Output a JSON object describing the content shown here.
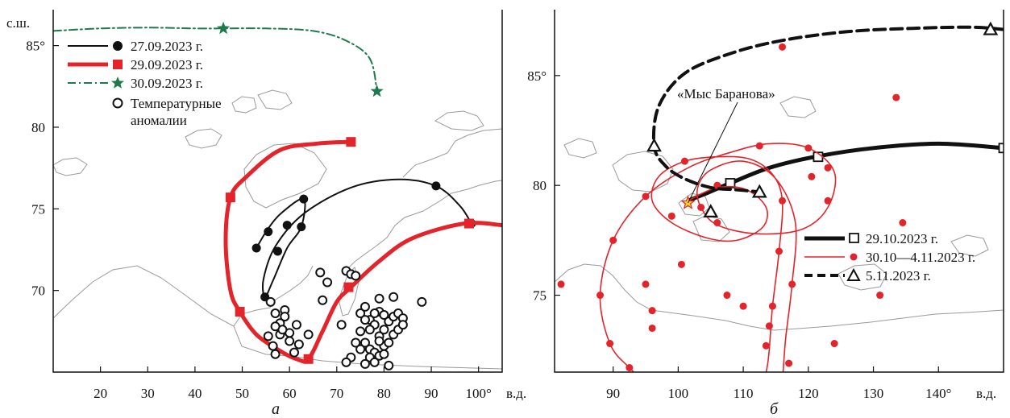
{
  "colors": {
    "black": "#111111",
    "red": "#e3242b",
    "green": "#1e7a4a",
    "star_fill": "#f0d020",
    "coast": "#9a9a9a"
  },
  "chart_data": [
    {
      "type": "line",
      "panel_label": "а",
      "xlabel": "в.д.",
      "ylabel": "с.ш.",
      "xlim": [
        10,
        105
      ],
      "ylim": [
        65,
        87.2
      ],
      "x_ticks": [
        20,
        30,
        40,
        50,
        60,
        70,
        80,
        90,
        100
      ],
      "x_tick_labels": [
        "20",
        "30",
        "40",
        "50",
        "60",
        "70",
        "80",
        "90",
        "100°"
      ],
      "y_ticks": [
        70,
        75,
        80,
        85
      ],
      "y_tick_labels": [
        "70",
        "75",
        "80",
        "85°"
      ],
      "legend_position": "top-left",
      "series": [
        {
          "name": "27.09.2023 г.",
          "color": "black",
          "marker": "circle",
          "line_width": 2,
          "path": [
            [
              98.5,
              74.1
            ],
            [
              96,
              75.2
            ],
            [
              91,
              76.4
            ],
            [
              83,
              76.8
            ],
            [
              73,
              76.3
            ],
            [
              63,
              74.7
            ],
            [
              57,
              72.7
            ],
            [
              54.5,
              70.7
            ],
            [
              54.8,
              69.6
            ],
            [
              56.5,
              70.6
            ],
            [
              59.5,
              72.6
            ],
            [
              62.5,
              73.9
            ],
            [
              63,
              75.6
            ],
            [
              58.5,
              74.8
            ],
            [
              55.5,
              73.8
            ],
            [
              53,
              72.6
            ]
          ],
          "points": [
            [
              98.5,
              74.1
            ],
            [
              91,
              76.4
            ],
            [
              63,
              75.6
            ],
            [
              59.5,
              74
            ],
            [
              57.5,
              72.4
            ],
            [
              62.5,
              73.9
            ],
            [
              53,
              72.6
            ],
            [
              55.5,
              73.6
            ],
            [
              54.8,
              69.6
            ]
          ]
        },
        {
          "name": "29.09.2023 г.",
          "color": "red",
          "marker": "square",
          "line_width": 5,
          "path": [
            [
              73,
              79.1
            ],
            [
              66,
              79
            ],
            [
              58,
              78.6
            ],
            [
              51,
              77
            ],
            [
              47.5,
              75.7
            ],
            [
              46.5,
              73
            ],
            [
              47.5,
              70
            ],
            [
              49.5,
              68.7
            ],
            [
              53,
              67.3
            ],
            [
              58,
              66.3
            ],
            [
              61.5,
              65.8
            ],
            [
              64,
              65.8
            ],
            [
              67,
              67.5
            ],
            [
              70,
              69.3
            ],
            [
              73,
              70.2
            ],
            [
              79,
              71.8
            ],
            [
              86,
              73.2
            ],
            [
              97,
              74.1
            ],
            [
              105,
              74
            ]
          ],
          "points": [
            [
              73,
              79.1
            ],
            [
              47.5,
              75.7
            ],
            [
              49.5,
              68.7
            ],
            [
              64,
              65.8
            ],
            [
              72.5,
              70.2
            ],
            [
              98,
              74.1
            ]
          ]
        },
        {
          "name": "30.09.2023 г.",
          "color": "green",
          "marker": "star",
          "line_width": 2,
          "dash": "10 4 2 4",
          "path": [
            [
              10,
              85.9
            ],
            [
              20,
              86.05
            ],
            [
              30,
              86.1
            ],
            [
              40,
              86.05
            ],
            [
              46,
              86.05
            ],
            [
              55,
              86.05
            ],
            [
              65,
              85.9
            ],
            [
              72,
              85.3
            ],
            [
              77,
              84.2
            ],
            [
              78.5,
              82.2
            ]
          ],
          "points": [
            [
              46,
              86.05
            ],
            [
              78.5,
              82.2
            ]
          ]
        },
        {
          "name": "Температурные аномалии",
          "color": "black",
          "marker": "open-circle",
          "points": [
            [
              56,
              69.3
            ],
            [
              57,
              68.6
            ],
            [
              58,
              68
            ],
            [
              59,
              68.8
            ],
            [
              60,
              67.4
            ],
            [
              58,
              67.3
            ],
            [
              60,
              66.9
            ],
            [
              61,
              66.2
            ],
            [
              56.5,
              66.6
            ],
            [
              57,
              66.1
            ],
            [
              58.5,
              67.6
            ],
            [
              59,
              68.4
            ],
            [
              61.5,
              67.9
            ],
            [
              62,
              66.7
            ],
            [
              64,
              67.3
            ],
            [
              55.5,
              67.2
            ],
            [
              57,
              67.8
            ],
            [
              66.5,
              71.1
            ],
            [
              68,
              70.5
            ],
            [
              67,
              69.4
            ],
            [
              72,
              71.2
            ],
            [
              73,
              71
            ],
            [
              74,
              70.9
            ],
            [
              75,
              68.6
            ],
            [
              76,
              69
            ],
            [
              77,
              68.2
            ],
            [
              76,
              66.8
            ],
            [
              77,
              66.4
            ],
            [
              78,
              66.2
            ],
            [
              77,
              65.9
            ],
            [
              78,
              65.6
            ],
            [
              79,
              66
            ],
            [
              80,
              66.6
            ],
            [
              79,
              67.2
            ],
            [
              80,
              67.6
            ],
            [
              81,
              68.1
            ],
            [
              82,
              68.4
            ],
            [
              83,
              68.6
            ],
            [
              84,
              68.3
            ],
            [
              82,
              67.3
            ],
            [
              81,
              66.8
            ],
            [
              83,
              67.6
            ],
            [
              84,
              67.9
            ],
            [
              79,
              68.7
            ],
            [
              80,
              68.5
            ],
            [
              78,
              67.9
            ],
            [
              79,
              69.5
            ],
            [
              82,
              69.6
            ],
            [
              88,
              69.3
            ],
            [
              75,
              67.5
            ],
            [
              75,
              66.4
            ],
            [
              76,
              65.5
            ],
            [
              73,
              65.9
            ],
            [
              72,
              65.6
            ],
            [
              74,
              66.8
            ],
            [
              71,
              67.9
            ],
            [
              76,
              68.2
            ],
            [
              77,
              67.6
            ],
            [
              78,
              68.6
            ],
            [
              79,
              66.9
            ],
            [
              80,
              66.1
            ],
            [
              81,
              65.4
            ]
          ]
        }
      ]
    },
    {
      "type": "line",
      "panel_label": "б",
      "xlabel": "в.д.",
      "xlim": [
        81,
        150
      ],
      "ylim": [
        71.5,
        88
      ],
      "x_ticks": [
        90,
        100,
        110,
        120,
        130,
        140
      ],
      "x_tick_labels": [
        "90",
        "100",
        "110",
        "120",
        "130",
        "140°"
      ],
      "y_ticks": [
        75,
        80,
        85
      ],
      "y_tick_labels": [
        "75",
        "80",
        "85°"
      ],
      "legend_position": "bottom-right",
      "annotation": {
        "text": "«Мыс Баранова»",
        "x": 101.5,
        "y": 79.2
      },
      "series": [
        {
          "name": "29.10.2023 г.",
          "color": "black",
          "marker": "open-square",
          "line_width": 5,
          "path": [
            [
              101.5,
              79.3
            ],
            [
              104,
              79.6
            ],
            [
              108,
              80.1
            ],
            [
              114,
              80.8
            ],
            [
              121,
              81.3
            ],
            [
              130,
              81.7
            ],
            [
              140,
              81.9
            ],
            [
              150,
              81.7
            ]
          ],
          "points": [
            [
              108,
              80.1
            ],
            [
              121.5,
              81.3
            ],
            [
              150,
              81.7
            ]
          ]
        },
        {
          "name": "30.10—4.11.2023 г.",
          "color": "red",
          "marker": "dot",
          "line_width": 1.6,
          "path": [
            [
              101.5,
              79.3
            ],
            [
              106,
              79.9
            ],
            [
              110.5,
              79.8
            ],
            [
              113.5,
              79
            ],
            [
              113,
              78.1
            ],
            [
              109,
              77.5
            ],
            [
              104.5,
              77.6
            ],
            [
              99,
              78.3
            ],
            [
              96,
              79.3
            ],
            [
              97,
              80.4
            ],
            [
              101,
              81.1
            ],
            [
              106,
              81.3
            ],
            [
              111,
              81.2
            ],
            [
              114.5,
              80.5
            ],
            [
              116,
              79.3
            ],
            [
              115.5,
              77
            ],
            [
              114.5,
              74.5
            ],
            [
              113.5,
              71.5
            ],
            [
              111,
              70.5
            ],
            [
              106,
              70
            ],
            [
              101,
              70.2
            ],
            [
              96,
              70.8
            ],
            [
              92.5,
              71.7
            ],
            [
              89.5,
              72.8
            ],
            [
              88,
              75
            ],
            [
              90,
              77.5
            ],
            [
              95,
              79.5
            ],
            [
              101.5,
              80.8
            ],
            [
              108,
              81.5
            ],
            [
              114,
              81.9
            ],
            [
              120,
              81.7
            ],
            [
              124,
              80.6
            ],
            [
              123,
              79
            ],
            [
              119,
              78
            ],
            [
              112,
              77.8
            ],
            [
              106,
              78.2
            ],
            [
              103.5,
              79
            ],
            [
              103,
              79.9
            ],
            [
              105,
              80.7
            ],
            [
              110,
              81.1
            ],
            [
              115,
              80.3
            ],
            [
              118,
              78.3
            ],
            [
              117.5,
              75.5
            ],
            [
              116.5,
              73
            ],
            [
              116,
              71
            ],
            [
              115.5,
              69.5
            ]
          ],
          "points": [
            [
              116,
              79.3
            ],
            [
              115.5,
              77
            ],
            [
              114.5,
              74.5
            ],
            [
              114,
              73.6
            ],
            [
              113.5,
              72.7
            ],
            [
              110,
              74.5
            ],
            [
              107.5,
              75
            ],
            [
              106,
              78.3
            ],
            [
              103.5,
              79
            ],
            [
              101,
              81.1
            ],
            [
              95,
              79.5
            ],
            [
              99,
              78.6
            ],
            [
              90,
              77.5
            ],
            [
              88,
              75
            ],
            [
              89.5,
              72.8
            ],
            [
              92.5,
              71.7
            ],
            [
              96,
              73.5
            ],
            [
              96,
              74.3
            ],
            [
              100.5,
              76.4
            ],
            [
              106,
              80
            ],
            [
              112.5,
              81.8
            ],
            [
              120,
              81.7
            ],
            [
              120.5,
              80.4
            ],
            [
              123,
              79.3
            ],
            [
              123,
              80.8
            ],
            [
              117.5,
              75.5
            ],
            [
              117,
              71.9
            ],
            [
              124,
              72.8
            ],
            [
              131,
              75
            ],
            [
              134.5,
              78.3
            ],
            [
              133.5,
              84
            ],
            [
              116,
              86.3
            ],
            [
              95,
              75.5
            ],
            [
              82,
              75.5
            ]
          ]
        },
        {
          "name": "5.11.2023 г.",
          "color": "black",
          "marker": "open-triangle",
          "line_width": 4,
          "dash": "14 7",
          "path": [
            [
              150,
              87.1
            ],
            [
              145,
              87.2
            ],
            [
              136,
              87.15
            ],
            [
              126,
              87
            ],
            [
              116,
              86.6
            ],
            [
              108,
              86
            ],
            [
              101,
              85.1
            ],
            [
              97,
              83.6
            ],
            [
              96.3,
              81.8
            ],
            [
              98,
              80.9
            ],
            [
              101,
              80.3
            ],
            [
              105,
              79.9
            ],
            [
              109,
              79.8
            ],
            [
              112.5,
              79.7
            ]
          ],
          "points": [
            [
              148,
              87.1
            ],
            [
              96.3,
              81.8
            ],
            [
              105,
              78.8
            ],
            [
              112.5,
              79.7
            ]
          ]
        }
      ]
    }
  ]
}
